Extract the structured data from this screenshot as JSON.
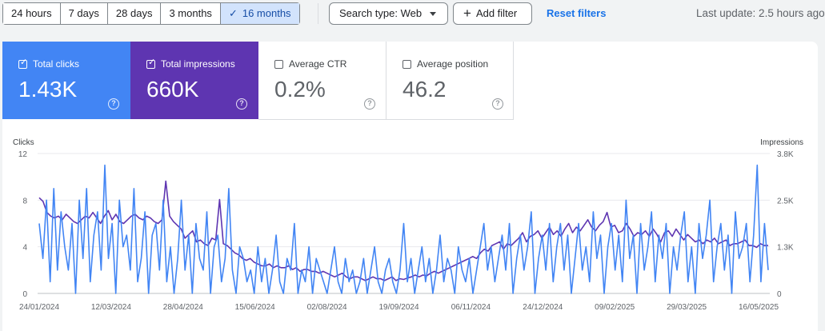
{
  "toolbar": {
    "ranges": [
      {
        "label": "24 hours",
        "active": false
      },
      {
        "label": "7 days",
        "active": false
      },
      {
        "label": "28 days",
        "active": false
      },
      {
        "label": "3 months",
        "active": false
      },
      {
        "label": "16 months",
        "active": true
      }
    ],
    "search_type": "Search type: Web",
    "add_filter": "Add filter",
    "reset_filters": "Reset filters",
    "last_update": "Last update: 2.5 hours ago"
  },
  "cards": {
    "clicks": {
      "label": "Total clicks",
      "value": "1.43K",
      "checked": true
    },
    "impressions": {
      "label": "Total impressions",
      "value": "660K",
      "checked": true
    },
    "ctr": {
      "label": "Average CTR",
      "value": "0.2%",
      "checked": false
    },
    "position": {
      "label": "Average position",
      "value": "46.2",
      "checked": false
    }
  },
  "colors": {
    "clicks": "#4285f4",
    "impressions": "#5e35b1"
  },
  "chart_data": {
    "type": "line",
    "title": "",
    "left_axis": {
      "label": "Clicks",
      "ticks": [
        "12",
        "8",
        "4",
        "0"
      ],
      "range": [
        0,
        12
      ]
    },
    "right_axis": {
      "label": "Impressions",
      "ticks": [
        "3.8K",
        "2.5K",
        "1.3K",
        "0"
      ],
      "range": [
        0,
        3800
      ]
    },
    "x_ticks": [
      "24/01/2024",
      "12/03/2024",
      "28/04/2024",
      "15/06/2024",
      "02/08/2024",
      "19/09/2024",
      "06/11/2024",
      "24/12/2024",
      "09/02/2025",
      "29/03/2025",
      "16/05/2025"
    ],
    "series": [
      {
        "name": "Clicks",
        "axis": "left",
        "values": [
          6,
          3,
          8,
          1,
          9,
          2,
          7,
          4,
          2,
          6,
          0,
          8,
          3,
          9,
          1,
          5,
          7,
          2,
          11,
          3,
          6,
          0,
          8,
          4,
          5,
          2,
          9,
          1,
          3,
          7,
          0,
          5,
          6,
          2,
          8,
          1,
          4,
          0,
          3,
          8,
          2,
          5,
          0,
          6,
          3,
          2,
          7,
          0,
          4,
          5,
          1,
          3,
          9,
          2,
          0,
          4,
          3,
          1,
          2,
          0,
          4,
          1,
          3,
          0,
          2,
          5,
          1,
          0,
          3,
          2,
          6,
          0,
          2,
          1,
          4,
          0,
          3,
          2,
          1,
          0,
          2,
          4,
          1,
          0,
          3,
          1,
          2,
          0,
          1,
          3,
          0,
          2,
          4,
          1,
          0,
          2,
          3,
          1,
          0,
          2,
          6,
          1,
          3,
          0,
          2,
          4,
          1,
          3,
          0,
          2,
          5,
          1,
          3,
          2,
          0,
          4,
          2,
          1,
          3,
          0,
          2,
          4,
          6,
          2,
          4,
          1,
          3,
          5,
          2,
          6,
          0,
          3,
          5,
          2,
          4,
          7,
          0,
          3,
          5,
          2,
          6,
          1,
          4,
          6,
          2,
          5,
          0,
          3,
          6,
          2,
          4,
          1,
          7,
          3,
          5,
          0,
          4,
          6,
          2,
          5,
          1,
          8,
          3,
          5,
          0,
          6,
          2,
          4,
          7,
          1,
          5,
          3,
          6,
          0,
          4,
          2,
          5,
          7,
          1,
          4,
          0,
          6,
          3,
          5,
          8,
          1,
          4,
          6,
          2,
          5,
          0,
          7,
          3,
          4,
          6,
          1,
          5,
          11,
          1,
          6,
          2
        ]
      },
      {
        "name": "Impressions",
        "axis": "right",
        "values": [
          2600,
          2500,
          2200,
          2100,
          2050,
          2100,
          2000,
          2150,
          2050,
          1950,
          1900,
          2000,
          2100,
          2050,
          2200,
          2050,
          1900,
          2100,
          2250,
          2000,
          2150,
          1950,
          1900,
          2000,
          2100,
          2150,
          2050,
          2000,
          2100,
          2050,
          1950,
          1900,
          2000,
          3050,
          2100,
          1950,
          1850,
          1750,
          1500,
          1600,
          1700,
          1400,
          1450,
          1350,
          1300,
          1500,
          1450,
          2550,
          1350,
          1300,
          1200,
          1100,
          1050,
          950,
          900,
          950,
          850,
          800,
          750,
          750,
          800,
          700,
          750,
          700,
          700,
          750,
          650,
          700,
          600,
          650,
          650,
          600,
          600,
          550,
          600,
          550,
          500,
          450,
          500,
          550,
          450,
          400,
          450,
          450,
          400,
          350,
          400,
          450,
          400,
          400,
          350,
          400,
          450,
          350,
          400,
          380,
          420,
          450,
          500,
          450,
          500,
          480,
          550,
          600,
          550,
          600,
          650,
          700,
          750,
          800,
          850,
          900,
          950,
          1000,
          950,
          1100,
          1200,
          1150,
          1300,
          1350,
          1400,
          1200,
          1350,
          1300,
          1400,
          1500,
          1650,
          1400,
          1550,
          1600,
          1700,
          1500,
          1650,
          1800,
          1600,
          1700,
          1550,
          1750,
          1900,
          1650,
          1800,
          1700,
          1850,
          2000,
          1800,
          1700,
          1850,
          1950,
          2200,
          1800,
          1850,
          1650,
          1700,
          1900,
          1750,
          1550,
          1650,
          1600,
          1700,
          1550,
          1750,
          1600,
          1400,
          1650,
          1700,
          1550,
          1750,
          1600,
          1450,
          1600,
          1500,
          1400,
          1450,
          1350,
          1450,
          1400,
          1500,
          1350,
          1400,
          1450,
          1300,
          1350,
          1350,
          1400,
          1450,
          1300,
          1300,
          1250,
          1350,
          1300,
          1300
        ]
      }
    ],
    "grid": true
  }
}
